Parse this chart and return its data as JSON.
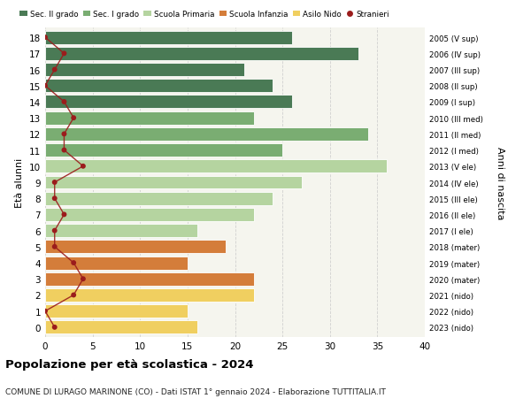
{
  "ages": [
    18,
    17,
    16,
    15,
    14,
    13,
    12,
    11,
    10,
    9,
    8,
    7,
    6,
    5,
    4,
    3,
    2,
    1,
    0
  ],
  "right_labels": [
    "2005 (V sup)",
    "2006 (IV sup)",
    "2007 (III sup)",
    "2008 (II sup)",
    "2009 (I sup)",
    "2010 (III med)",
    "2011 (II med)",
    "2012 (I med)",
    "2013 (V ele)",
    "2014 (IV ele)",
    "2015 (III ele)",
    "2016 (II ele)",
    "2017 (I ele)",
    "2018 (mater)",
    "2019 (mater)",
    "2020 (mater)",
    "2021 (nido)",
    "2022 (nido)",
    "2023 (nido)"
  ],
  "bar_values": [
    26,
    33,
    21,
    24,
    26,
    22,
    34,
    25,
    36,
    27,
    24,
    22,
    16,
    19,
    15,
    22,
    22,
    15,
    16
  ],
  "bar_colors": [
    "#4a7a55",
    "#4a7a55",
    "#4a7a55",
    "#4a7a55",
    "#4a7a55",
    "#7aad72",
    "#7aad72",
    "#7aad72",
    "#b5d4a0",
    "#b5d4a0",
    "#b5d4a0",
    "#b5d4a0",
    "#b5d4a0",
    "#d47d3a",
    "#d47d3a",
    "#d47d3a",
    "#f0cf60",
    "#f0cf60",
    "#f0cf60"
  ],
  "stranieri_values": [
    0,
    2,
    1,
    0,
    2,
    3,
    2,
    2,
    4,
    1,
    1,
    2,
    1,
    1,
    3,
    4,
    3,
    0,
    1
  ],
  "legend_labels": [
    "Sec. II grado",
    "Sec. I grado",
    "Scuola Primaria",
    "Scuola Infanzia",
    "Asilo Nido",
    "Stranieri"
  ],
  "legend_colors": [
    "#4a7a55",
    "#7aad72",
    "#b5d4a0",
    "#d47d3a",
    "#f0cf60",
    "#9b1c1c"
  ],
  "ylabel": "Età alunni",
  "right_ylabel": "Anni di nascita",
  "xlim": [
    0,
    40
  ],
  "xticks": [
    0,
    5,
    10,
    15,
    20,
    25,
    30,
    35,
    40
  ],
  "title": "Popolazione per età scolastica - 2024",
  "subtitle": "COMUNE DI LURAGO MARINONE (CO) - Dati ISTAT 1° gennaio 2024 - Elaborazione TUTTITALIA.IT",
  "plot_bg_color": "#f5f5ee",
  "fig_bg_color": "#ffffff",
  "grid_color": "#d0d0d0",
  "stranieri_line_color": "#9b1c1c",
  "stranieri_dot_color": "#9b1c1c",
  "bar_height": 0.82
}
